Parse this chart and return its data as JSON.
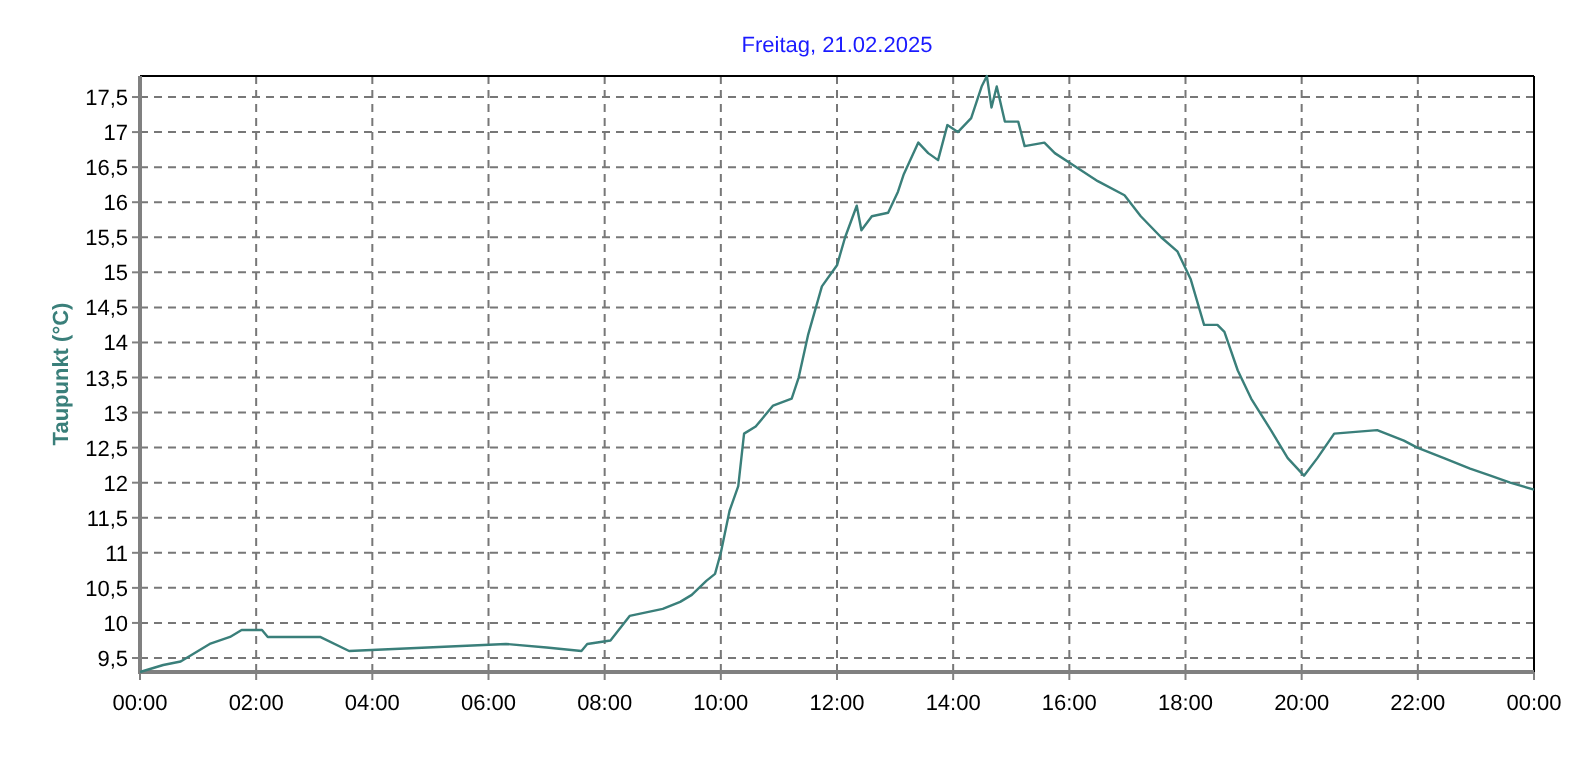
{
  "chart_data": {
    "type": "line",
    "title": "Freitag, 21.02.2025",
    "ylabel": "Taupunkt  (°C)",
    "x": [
      0,
      0.4,
      0.7,
      1.0,
      1.2,
      1.55,
      1.75,
      2.1,
      2.2,
      3.1,
      3.6,
      6.3,
      7.0,
      7.6,
      7.7,
      8.1,
      8.43,
      9.0,
      9.3,
      9.5,
      9.75,
      9.9,
      10.0,
      10.15,
      10.3,
      10.4,
      10.6,
      10.9,
      11.22,
      11.34,
      11.5,
      11.74,
      12.0,
      12.14,
      12.34,
      12.42,
      12.6,
      12.88,
      13.05,
      13.15,
      13.4,
      13.57,
      13.74,
      13.9,
      14.08,
      14.31,
      14.49,
      14.58,
      14.66,
      14.75,
      14.89,
      15.12,
      15.23,
      15.57,
      15.75,
      16.03,
      16.49,
      16.95,
      17.23,
      17.58,
      17.86,
      18.09,
      18.32,
      18.55,
      18.67,
      18.9,
      19.13,
      19.47,
      19.76,
      20.04,
      20.27,
      20.56,
      21.3,
      21.76,
      21.99,
      22.45,
      22.9,
      23.25,
      23.59,
      24.0
    ],
    "series": [
      {
        "color": "#3a7f7a",
        "values": [
          9.3,
          9.4,
          9.45,
          9.6,
          9.7,
          9.8,
          9.9,
          9.9,
          9.8,
          9.8,
          9.6,
          9.7,
          9.65,
          9.6,
          9.7,
          9.75,
          10.1,
          10.2,
          10.3,
          10.4,
          10.6,
          10.7,
          11.0,
          11.6,
          11.95,
          12.7,
          12.8,
          13.1,
          13.2,
          13.5,
          14.1,
          14.8,
          15.1,
          15.5,
          15.95,
          15.6,
          15.8,
          15.85,
          16.15,
          16.4,
          16.85,
          16.7,
          16.6,
          17.1,
          17.0,
          17.2,
          17.65,
          17.8,
          17.35,
          17.65,
          17.15,
          17.15,
          16.8,
          16.85,
          16.7,
          16.55,
          16.3,
          16.1,
          15.8,
          15.5,
          15.3,
          14.9,
          14.25,
          14.25,
          14.15,
          13.6,
          13.2,
          12.75,
          12.35,
          12.1,
          12.35,
          12.7,
          12.75,
          12.6,
          12.5,
          12.35,
          12.2,
          12.1,
          12.0,
          11.9
        ]
      }
    ],
    "xlim": [
      0,
      24
    ],
    "xticks": [
      {
        "value": 0,
        "label": "00:00"
      },
      {
        "value": 2,
        "label": "02:00"
      },
      {
        "value": 4,
        "label": "04:00"
      },
      {
        "value": 6,
        "label": "06:00"
      },
      {
        "value": 8,
        "label": "08:00"
      },
      {
        "value": 10,
        "label": "10:00"
      },
      {
        "value": 12,
        "label": "12:00"
      },
      {
        "value": 14,
        "label": "14:00"
      },
      {
        "value": 16,
        "label": "16:00"
      },
      {
        "value": 18,
        "label": "18:00"
      },
      {
        "value": 20,
        "label": "20:00"
      },
      {
        "value": 22,
        "label": "22:00"
      },
      {
        "value": 24,
        "label": "00:00"
      }
    ],
    "ylim": [
      9.3,
      17.8
    ],
    "yticks": [
      {
        "value": 9.5,
        "label": "9,5"
      },
      {
        "value": 10,
        "label": "10"
      },
      {
        "value": 10.5,
        "label": "10,5"
      },
      {
        "value": 11,
        "label": "11"
      },
      {
        "value": 11.5,
        "label": "11,5"
      },
      {
        "value": 12,
        "label": "12"
      },
      {
        "value": 12.5,
        "label": "12,5"
      },
      {
        "value": 13,
        "label": "13"
      },
      {
        "value": 13.5,
        "label": "13,5"
      },
      {
        "value": 14,
        "label": "14"
      },
      {
        "value": 14.5,
        "label": "14,5"
      },
      {
        "value": 15,
        "label": "15"
      },
      {
        "value": 15.5,
        "label": "15,5"
      },
      {
        "value": 16,
        "label": "16"
      },
      {
        "value": 16.5,
        "label": "16,5"
      },
      {
        "value": 17,
        "label": "17"
      },
      {
        "value": 17.5,
        "label": "17,5"
      }
    ],
    "grid": true,
    "marker": "none",
    "line_style": "solid"
  }
}
